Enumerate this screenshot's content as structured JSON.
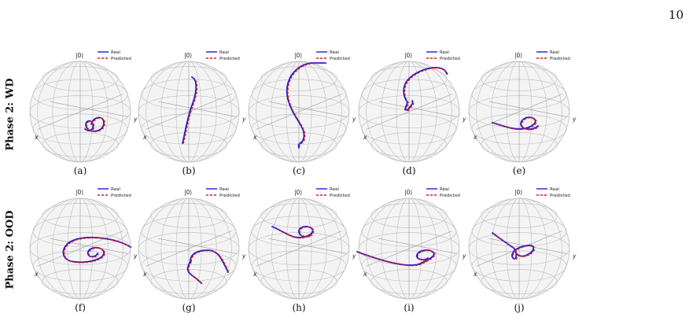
{
  "page_number": "10",
  "rows": [
    {
      "label": "Phase 2:  WD",
      "panels": [
        {
          "caption": "(a)",
          "curve": "loop-small"
        },
        {
          "caption": "(b)",
          "curve": "vertical"
        },
        {
          "caption": "(c)",
          "curve": "hook"
        },
        {
          "caption": "(d)",
          "curve": "arc"
        },
        {
          "caption": "(e)",
          "curve": "loop-side"
        }
      ]
    },
    {
      "label": "Phase 2:  OOD",
      "panels": [
        {
          "caption": "(f)",
          "curve": "spiral"
        },
        {
          "caption": "(g)",
          "curve": "arch"
        },
        {
          "caption": "(h)",
          "curve": "short-loop"
        },
        {
          "caption": "(i)",
          "curve": "long-loop"
        },
        {
          "caption": "(j)",
          "curve": "diag-loop"
        }
      ]
    }
  ],
  "sphere_labels": {
    "top": "|0⟩",
    "bottom": "|1⟩",
    "x": "x",
    "y": "y"
  },
  "legend": {
    "real": "Real",
    "predicted": "Predicted"
  },
  "colors": {
    "real": "#1f1fd6",
    "predicted": "#e31a1c",
    "grid": "#bdbdbd"
  }
}
